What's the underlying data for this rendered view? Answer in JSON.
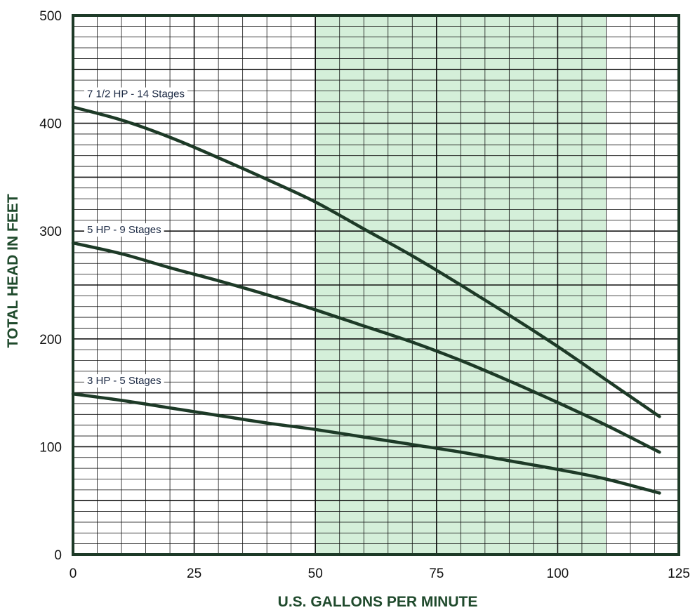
{
  "colors": {
    "curve": "#1d3a27",
    "highlight": "#d4efd9",
    "axis_title": "#1f4a2c",
    "grid": "#111111",
    "frame": "#1d3a27"
  },
  "chart_data": {
    "type": "line",
    "title": "",
    "xlabel": "U.S. GALLONS PER MINUTE",
    "ylabel": "TOTAL HEAD IN FEET",
    "xlim": [
      0,
      125
    ],
    "ylim": [
      0,
      500
    ],
    "x_ticks": [
      "0",
      "25",
      "50",
      "75",
      "100",
      "125"
    ],
    "y_ticks": [
      "0",
      "100",
      "200",
      "300",
      "400",
      "500"
    ],
    "grid": true,
    "highlight_range": [
      50,
      110
    ],
    "series": [
      {
        "name": "7 1/2 HP - 14 Stages",
        "x": [
          0,
          10,
          20,
          30,
          40,
          50,
          60,
          70,
          80,
          90,
          100,
          110,
          121
        ],
        "y": [
          415,
          403,
          387,
          368,
          348,
          327,
          302,
          277,
          250,
          222,
          193,
          162,
          128
        ]
      },
      {
        "name": "5 HP - 9 Stages",
        "x": [
          0,
          10,
          20,
          30,
          40,
          50,
          60,
          70,
          80,
          90,
          100,
          110,
          121
        ],
        "y": [
          289,
          279,
          266,
          254,
          241,
          227,
          212,
          197,
          180,
          161,
          141,
          120,
          95
        ]
      },
      {
        "name": "3 HP - 5 Stages",
        "x": [
          0,
          10,
          20,
          30,
          40,
          50,
          60,
          70,
          80,
          90,
          100,
          110,
          121
        ],
        "y": [
          149,
          143,
          136,
          129,
          122,
          116,
          109,
          102,
          95,
          87,
          79,
          70,
          57
        ]
      }
    ]
  }
}
